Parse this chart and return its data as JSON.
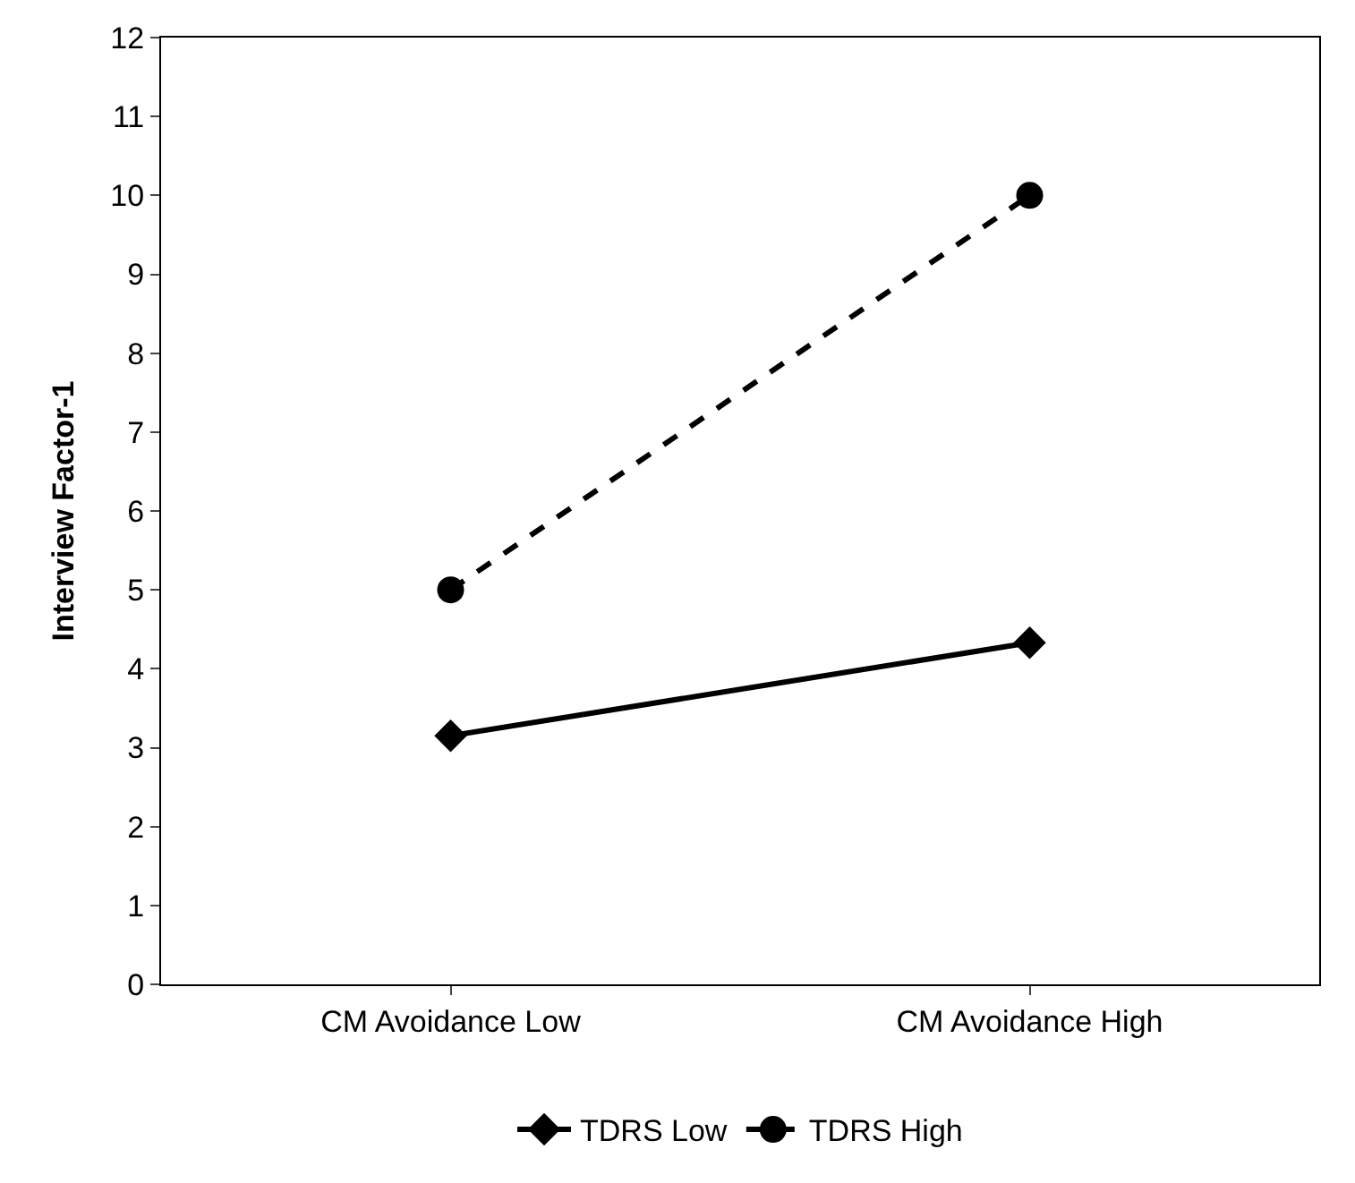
{
  "chart_data": {
    "type": "line",
    "ylabel": "Interview Factor-1",
    "categories": [
      "CM Avoidance Low",
      "CM Avoidance High"
    ],
    "series": [
      {
        "name": "TDRS Low",
        "color": "#000000",
        "values": [
          3.15,
          4.33
        ],
        "marker": "diamond",
        "line_style": "solid"
      },
      {
        "name": "TDRS High",
        "color": "#000000",
        "values": [
          5.0,
          10.0
        ],
        "marker": "circle",
        "line_style": "dashed"
      }
    ],
    "ylim": [
      0,
      12
    ],
    "yticks": [
      0,
      1,
      2,
      3,
      4,
      5,
      6,
      7,
      8,
      9,
      10,
      11,
      12
    ],
    "grid": false,
    "legend": "bottom"
  }
}
